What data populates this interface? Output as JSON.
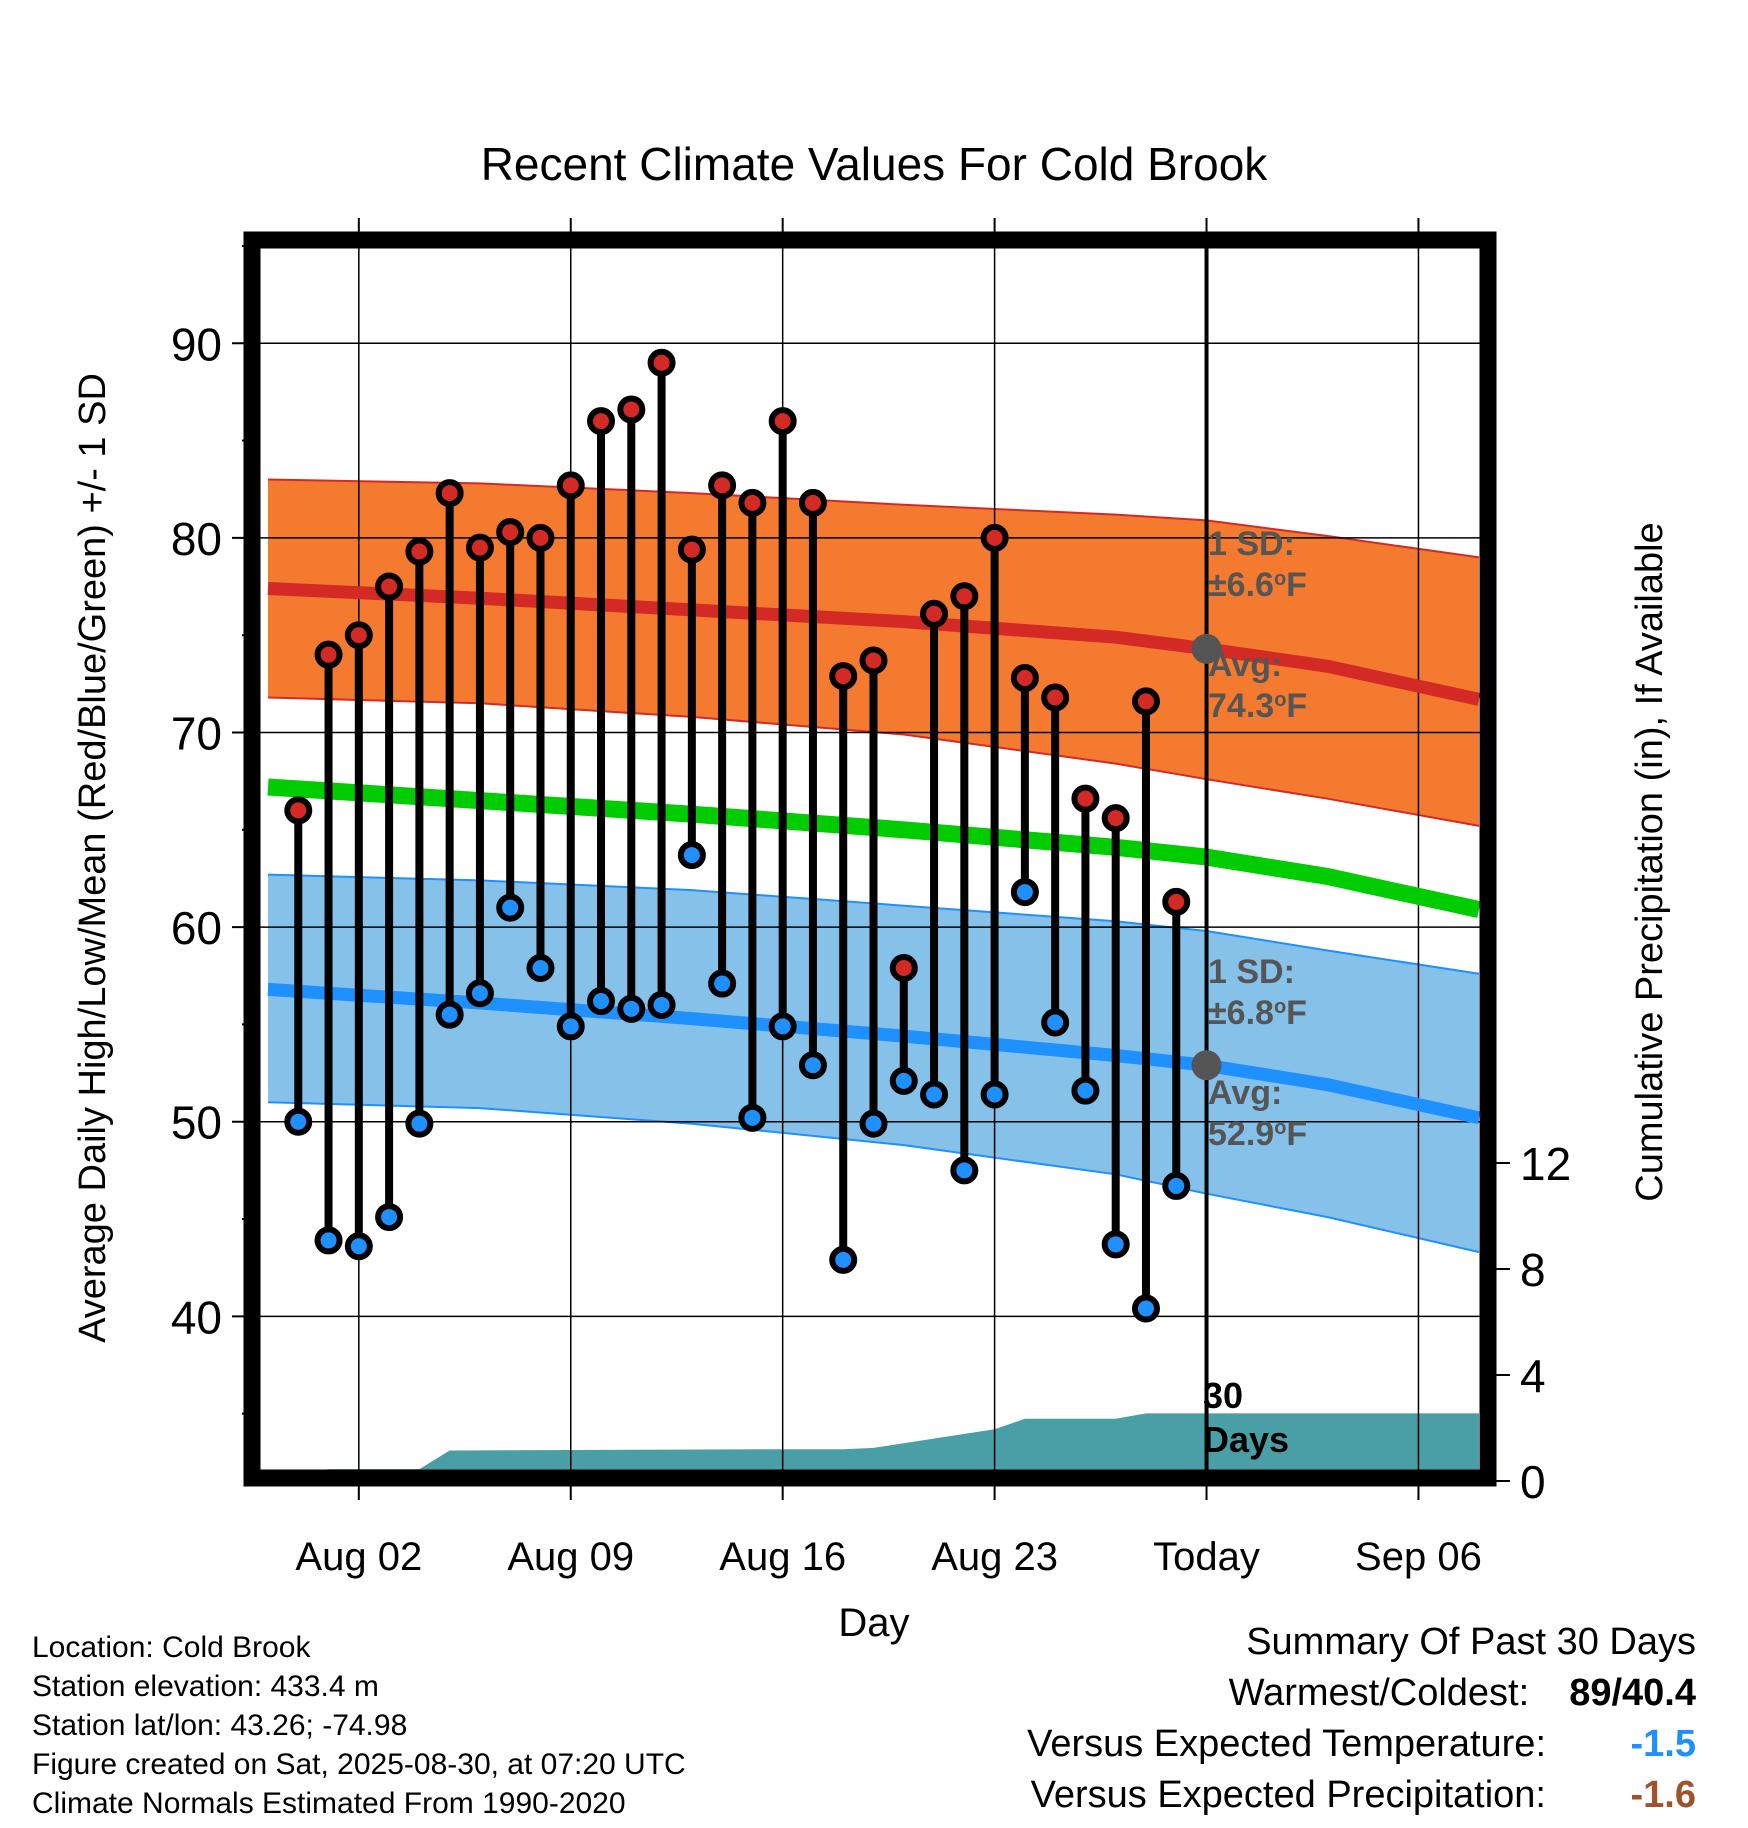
{
  "chart_data": {
    "type": "line",
    "title": "Recent Climate Values For Cold Brook",
    "xlabel": "Day",
    "ylabel": "Average Daily High/Low/Mean (Red/Blue/Green) +/- 1 SD",
    "y2label": "Cumulative Precipitation (in), If Available",
    "ylim": [
      32,
      95
    ],
    "y2lim": [
      0,
      27
    ],
    "yticks": [
      "40",
      "50",
      "60",
      "70",
      "80",
      "90"
    ],
    "y2ticks": [
      "0",
      "4",
      "8",
      "12"
    ],
    "x_range": [
      "2025-07-30",
      "2025-09-08"
    ],
    "x_ticks": [
      {
        "date": "2025-08-02",
        "label": "Aug 02"
      },
      {
        "date": "2025-08-09",
        "label": "Aug 09"
      },
      {
        "date": "2025-08-16",
        "label": "Aug 16"
      },
      {
        "date": "2025-08-23",
        "label": "Aug 23"
      },
      {
        "date": "2025-08-30",
        "label": "Today"
      },
      {
        "date": "2025-09-06",
        "label": "Sep 06"
      }
    ],
    "today": "2025-08-30",
    "grid": true,
    "daily_observations": {
      "dates": [
        "2025-07-31",
        "2025-08-01",
        "2025-08-02",
        "2025-08-03",
        "2025-08-04",
        "2025-08-05",
        "2025-08-06",
        "2025-08-07",
        "2025-08-08",
        "2025-08-09",
        "2025-08-10",
        "2025-08-11",
        "2025-08-12",
        "2025-08-13",
        "2025-08-14",
        "2025-08-15",
        "2025-08-16",
        "2025-08-17",
        "2025-08-18",
        "2025-08-19",
        "2025-08-20",
        "2025-08-21",
        "2025-08-22",
        "2025-08-23",
        "2025-08-24",
        "2025-08-25",
        "2025-08-26",
        "2025-08-27",
        "2025-08-28",
        "2025-08-29"
      ],
      "high": [
        66,
        74,
        75,
        77.5,
        79.3,
        82.3,
        79.5,
        80.3,
        80,
        82.7,
        86,
        86.6,
        89,
        79.4,
        82.7,
        81.8,
        86,
        81.8,
        72.9,
        73.7,
        57.9,
        76.1,
        77,
        80,
        72.8,
        71.8,
        66.6,
        65.6,
        71.6,
        61.3
      ],
      "low": [
        50,
        43.9,
        43.6,
        45.1,
        49.9,
        55.5,
        56.6,
        61,
        57.9,
        54.9,
        56.2,
        55.8,
        56,
        63.7,
        57.1,
        50.2,
        54.9,
        52.9,
        42.9,
        49.9,
        52.1,
        51.4,
        47.5,
        51.4,
        61.8,
        55.1,
        51.6,
        43.7,
        40.4,
        46.7
      ]
    },
    "normals": {
      "dates": [
        "2025-07-30",
        "2025-08-06",
        "2025-08-13",
        "2025-08-20",
        "2025-08-27",
        "2025-08-30",
        "2025-09-03",
        "2025-09-08"
      ],
      "avg_high": [
        77.4,
        76.9,
        76.3,
        75.7,
        74.9,
        74.3,
        73.4,
        71.7
      ],
      "avg_low": [
        56.8,
        56.1,
        55.3,
        54.4,
        53.4,
        52.9,
        51.9,
        50.2
      ],
      "avg_mean": [
        67.2,
        66.5,
        65.8,
        65,
        64.1,
        63.6,
        62.6,
        60.9
      ],
      "high_upper": [
        83,
        82.8,
        82.3,
        81.7,
        81.2,
        80.9,
        80.1,
        79
      ],
      "high_lower": [
        71.8,
        71.5,
        70.8,
        69.9,
        68.4,
        67.6,
        66.6,
        65.2
      ],
      "low_upper": [
        62.7,
        62.4,
        61.9,
        61.1,
        60.3,
        59.8,
        58.8,
        57.6
      ],
      "low_lower": [
        51,
        50.7,
        49.9,
        48.8,
        47.3,
        46.3,
        45.1,
        43.3
      ]
    },
    "precip_cumulative": {
      "dates": [
        "2025-07-30",
        "2025-07-31",
        "2025-08-01",
        "2025-08-04",
        "2025-08-05",
        "2025-08-16",
        "2025-08-18",
        "2025-08-19",
        "2025-08-23",
        "2025-08-24",
        "2025-08-27",
        "2025-08-28",
        "2025-09-08"
      ],
      "values": [
        0,
        0.25,
        0.45,
        0.45,
        1.15,
        1.2,
        1.2,
        1.25,
        1.95,
        2.35,
        2.35,
        2.55,
        2.55
      ]
    },
    "annotations": {
      "high_sd": [
        "1 SD:",
        "±6.6°F"
      ],
      "high_avg": [
        "Avg:",
        "74.3°F"
      ],
      "low_sd": [
        "1 SD:",
        "±6.8°F"
      ],
      "low_avg": [
        "Avg:",
        "52.9°F"
      ],
      "precip_days": [
        "30",
        "Days"
      ]
    },
    "colors": {
      "high_band": "#f47a30",
      "high_line": "#d42a26",
      "low_band": "#85c1e8",
      "low_line": "#1e90ff",
      "mean_line": "#00cc00",
      "precip": "#4a9ea6",
      "high_marker": "#d42a26",
      "low_marker": "#1e90ff",
      "today_marker": "#555555",
      "annotation_text": "#555555"
    }
  },
  "info": {
    "location": "Location: Cold Brook",
    "elevation": "Station elevation: 433.4 m",
    "latlon": "Station lat/lon: 43.26; -74.98",
    "created": "Figure created on Sat, 2025-08-30, at 07:20 UTC",
    "normals": "Climate Normals Estimated From 1990-2020"
  },
  "summary": {
    "title": "Summary Of Past 30 Days",
    "warmest_coldest_label": "Warmest/Coldest:",
    "warmest": "89",
    "coldest": "40.4",
    "temp_label": "Versus Expected Temperature:",
    "temp_value": "-1.5",
    "temp_color": "#1e90ff",
    "precip_label": "Versus Expected Precipitation:",
    "precip_value": "-1.6",
    "precip_color": "#a0522d"
  }
}
